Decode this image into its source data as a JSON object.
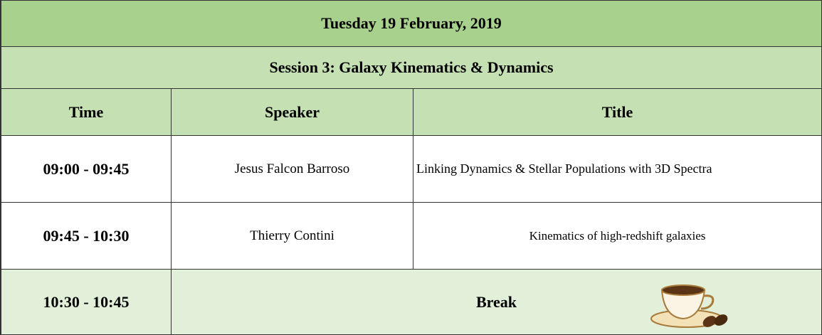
{
  "header": {
    "title": "Tuesday 19 February, 2019",
    "session": "Session 3: Galaxy Kinematics & Dynamics"
  },
  "table": {
    "columns": [
      "Time",
      "Speaker",
      "Title"
    ],
    "rows": [
      [
        "09:00 - 09:45",
        "Jesus Falcon Barroso",
        "Linking Dynamics & Stellar Populations with 3D Spectra"
      ],
      [
        "09:45 - 10:30",
        "Thierry Contini",
        "Kinematics of high-redshift galaxies"
      ],
      [
        "10:30 - 10:45",
        "Break"
      ]
    ]
  }
}
